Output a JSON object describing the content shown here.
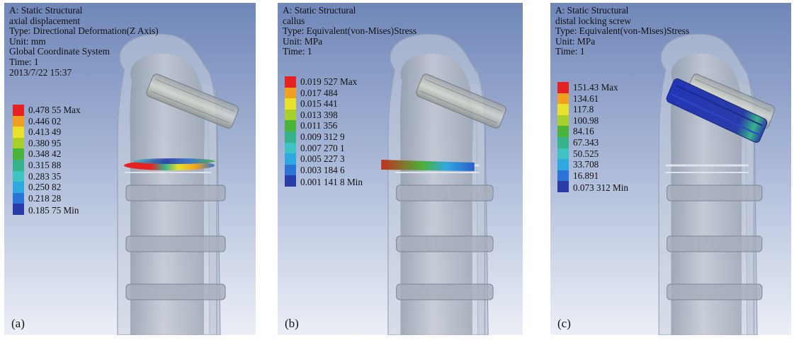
{
  "panels": [
    {
      "id": "a",
      "info": [
        "A: Static Structural",
        "axial displacement",
        "Type: Directional Deformation(Z Axis)",
        "Unit: mm",
        "Global Coordinate System",
        "Time: 1",
        "2013/7/22 15:37"
      ],
      "legend": [
        "0.478 55 Max",
        "0.446 02",
        "0.413 49",
        "0.380 95",
        "0.348 42",
        "0.315 88",
        "0.283 35",
        "0.250 82",
        "0.218 28",
        "0.185 75 Min"
      ],
      "tag": "(a)"
    },
    {
      "id": "b",
      "info": [
        "A: Static Structural",
        "callus",
        "Type: Equivalent(von-Mises)Stress",
        "Unit: MPa",
        "Time: 1"
      ],
      "legend": [
        "0.019 527 Max",
        "0.017 484",
        "0.015 441",
        "0.013 398",
        "0.011 356",
        "0.009 312 9",
        "0.007 270 1",
        "0.005 227 3",
        "0.003 184 6",
        "0.001 141 8 Min"
      ],
      "tag": "(b)"
    },
    {
      "id": "c",
      "info": [
        "A: Static Structural",
        "distal locking screw",
        "Type: Equivalent(von-Mises)Stress",
        "Unit: MPa",
        "Time: 1"
      ],
      "legend": [
        "151.43 Max",
        "134.61",
        "117.8",
        "100.98",
        "84.16",
        "67.343",
        "50.525",
        "33.708",
        "16.891",
        "0.073 312 Min"
      ],
      "tag": "(c)"
    }
  ],
  "colors": {
    "scale": [
      "#e52222",
      "#f0a020",
      "#e8e02a",
      "#a6cf2c",
      "#4bb23a",
      "#36b38a",
      "#3fc2c2",
      "#2ea8df",
      "#2b73d4",
      "#2a3ca8"
    ],
    "background_top": "#6f86b8",
    "background_bottom": "#eceff6"
  }
}
